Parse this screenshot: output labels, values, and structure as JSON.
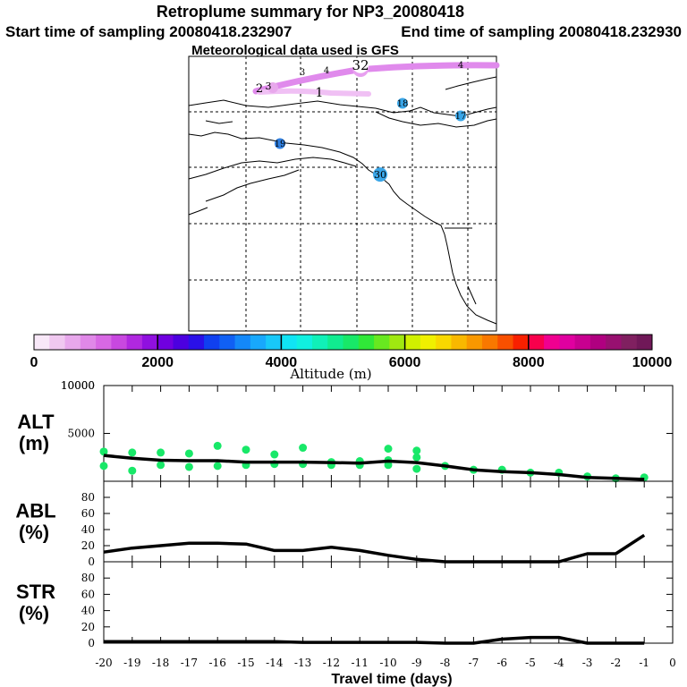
{
  "header": {
    "title": "Retroplume summary for NP3_20080418",
    "start_time": "Start time of sampling 20080418.232907",
    "end_time": "End time of sampling 20080418.232930",
    "met_data": "Meteorological data used is GFS"
  },
  "map": {
    "labels": [
      {
        "text": "1",
        "color": "#ffffff",
        "label_color": "#000000"
      },
      {
        "text": "2",
        "color": "#ffffff",
        "label_color": "#000000"
      },
      {
        "text": "3",
        "color": "#ffffff",
        "label_color": "#000000"
      },
      {
        "text": "3",
        "color": "#ffffff",
        "label_color": "#000000"
      },
      {
        "text": "32",
        "color": "#ffffff",
        "label_color": "#000000"
      },
      {
        "text": "4",
        "color": "#ffffff",
        "label_color": "#000000"
      },
      {
        "text": "4",
        "color": "#ffffff",
        "label_color": "#000000"
      },
      {
        "text": "18",
        "color": "#3aa6e8",
        "label_color": "#000000"
      },
      {
        "text": "17",
        "color": "#3aa6e8",
        "label_color": "#000000"
      },
      {
        "text": "19",
        "color": "#2f7fe0",
        "label_color": "#000000"
      },
      {
        "text": "30",
        "color": "#3aa6e8",
        "label_color": "#000000"
      }
    ]
  },
  "colorbar": {
    "tick_labels": [
      "0",
      "2000",
      "4000",
      "6000",
      "8000",
      "10000"
    ],
    "axis_label": "Altitude (m)",
    "colors": [
      "#f8e8f8",
      "#f0c8f0",
      "#e8a8ec",
      "#e088e8",
      "#d868e4",
      "#c848e0",
      "#b028e0",
      "#9010e0",
      "#7000e0",
      "#4c00e0",
      "#2a10e8",
      "#1040f0",
      "#1060f4",
      "#1488f8",
      "#18a8fc",
      "#18c8f8",
      "#10e4f4",
      "#10f0e0",
      "#10f0b8",
      "#10ec90",
      "#18e868",
      "#30e838",
      "#68e820",
      "#a0e810",
      "#d0f000",
      "#f0f000",
      "#f8d800",
      "#f8b800",
      "#f89800",
      "#f87800",
      "#f85000",
      "#f82000",
      "#f8004c",
      "#f00090",
      "#e000a0",
      "#c80090",
      "#b00080",
      "#981070",
      "#802060",
      "#701858"
    ]
  },
  "chart_data": [
    {
      "type": "line",
      "name": "ALT",
      "ylabel": "ALT\n(m)",
      "ylabel_line1": "ALT",
      "ylabel_line2": "(m)",
      "xlabel": "",
      "ylim": [
        0,
        10000
      ],
      "yticks": [
        0,
        5000,
        10000
      ],
      "ytick_labels": [
        "",
        "5000",
        "10000"
      ],
      "x": [
        -20,
        -19,
        -18,
        -17,
        -16,
        -15,
        -14,
        -13,
        -12,
        -11,
        -10,
        -9,
        -8,
        -7,
        -6,
        -5,
        -4,
        -3,
        -2,
        -1
      ],
      "values": [
        2700,
        2400,
        2200,
        2150,
        2150,
        2000,
        2000,
        2000,
        1950,
        1900,
        2100,
        1950,
        1600,
        1200,
        1000,
        900,
        700,
        400,
        300,
        200
      ],
      "scatter": {
        "color": "#18e868",
        "points": [
          {
            "x": -20,
            "y": 3100
          },
          {
            "x": -20,
            "y": 1600
          },
          {
            "x": -19,
            "y": 3000
          },
          {
            "x": -19,
            "y": 1100
          },
          {
            "x": -18,
            "y": 3000
          },
          {
            "x": -18,
            "y": 1700
          },
          {
            "x": -17,
            "y": 2900
          },
          {
            "x": -17,
            "y": 1500
          },
          {
            "x": -16,
            "y": 3700
          },
          {
            "x": -16,
            "y": 1600
          },
          {
            "x": -15,
            "y": 3300
          },
          {
            "x": -15,
            "y": 1700
          },
          {
            "x": -14,
            "y": 2800
          },
          {
            "x": -14,
            "y": 1800
          },
          {
            "x": -13,
            "y": 3500
          },
          {
            "x": -13,
            "y": 1800
          },
          {
            "x": -12,
            "y": 2000
          },
          {
            "x": -12,
            "y": 1700
          },
          {
            "x": -11,
            "y": 2100
          },
          {
            "x": -11,
            "y": 1700
          },
          {
            "x": -10,
            "y": 3400
          },
          {
            "x": -10,
            "y": 2200
          },
          {
            "x": -10,
            "y": 1700
          },
          {
            "x": -9,
            "y": 3200
          },
          {
            "x": -9,
            "y": 2500
          },
          {
            "x": -9,
            "y": 1300
          },
          {
            "x": -8,
            "y": 1600
          },
          {
            "x": -7,
            "y": 1200
          },
          {
            "x": -6,
            "y": 1200
          },
          {
            "x": -5,
            "y": 900
          },
          {
            "x": -4,
            "y": 900
          },
          {
            "x": -3,
            "y": 500
          },
          {
            "x": -2,
            "y": 300
          },
          {
            "x": -1,
            "y": 400
          }
        ]
      }
    },
    {
      "type": "line",
      "name": "ABL",
      "ylabel": "ABL\n(%)",
      "ylabel_line1": "ABL",
      "ylabel_line2": "(%)",
      "ylim": [
        0,
        100
      ],
      "yticks": [
        0,
        20,
        40,
        60,
        80
      ],
      "ytick_labels": [
        "0",
        "20",
        "40",
        "60",
        "80"
      ],
      "x": [
        -20,
        -19,
        -18,
        -17,
        -16,
        -15,
        -14,
        -13,
        -12,
        -11,
        -10,
        -9,
        -8,
        -7,
        -6,
        -5,
        -4,
        -3,
        -2,
        -1
      ],
      "values": [
        12,
        17,
        20,
        23,
        23,
        22,
        14,
        14,
        18,
        14,
        8,
        3,
        0,
        0,
        0,
        0,
        0,
        10,
        10,
        33
      ]
    },
    {
      "type": "line",
      "name": "STR",
      "ylabel": "STR\n(%)",
      "ylabel_line1": "STR",
      "ylabel_line2": "(%)",
      "ylim": [
        0,
        100
      ],
      "yticks": [
        0,
        20,
        40,
        60,
        80
      ],
      "ytick_labels": [
        "0",
        "20",
        "40",
        "60",
        "80"
      ],
      "x": [
        -20,
        -19,
        -18,
        -17,
        -16,
        -15,
        -14,
        -13,
        -12,
        -11,
        -10,
        -9,
        -8,
        -7,
        -6,
        -5,
        -4,
        -3,
        -2,
        -1
      ],
      "values": [
        2,
        2,
        2,
        2,
        2,
        2,
        2,
        1,
        1,
        1,
        1,
        1,
        0,
        0,
        5,
        7,
        7,
        0,
        0,
        0
      ]
    }
  ],
  "x_axis": {
    "label": "Travel time (days)",
    "ticks": [
      -20,
      -19,
      -18,
      -17,
      -16,
      -15,
      -14,
      -13,
      -12,
      -11,
      -10,
      -9,
      -8,
      -7,
      -6,
      -5,
      -4,
      -3,
      -2,
      -1,
      0
    ],
    "tick_labels": [
      "-20",
      "-19",
      "-18",
      "-17",
      "-16",
      "-15",
      "-14",
      "-13",
      "-12",
      "-11",
      "-10",
      "-9",
      "-8",
      "-7",
      "-6",
      "-5",
      "-4",
      "-3",
      "-2",
      "-1",
      "0"
    ]
  }
}
